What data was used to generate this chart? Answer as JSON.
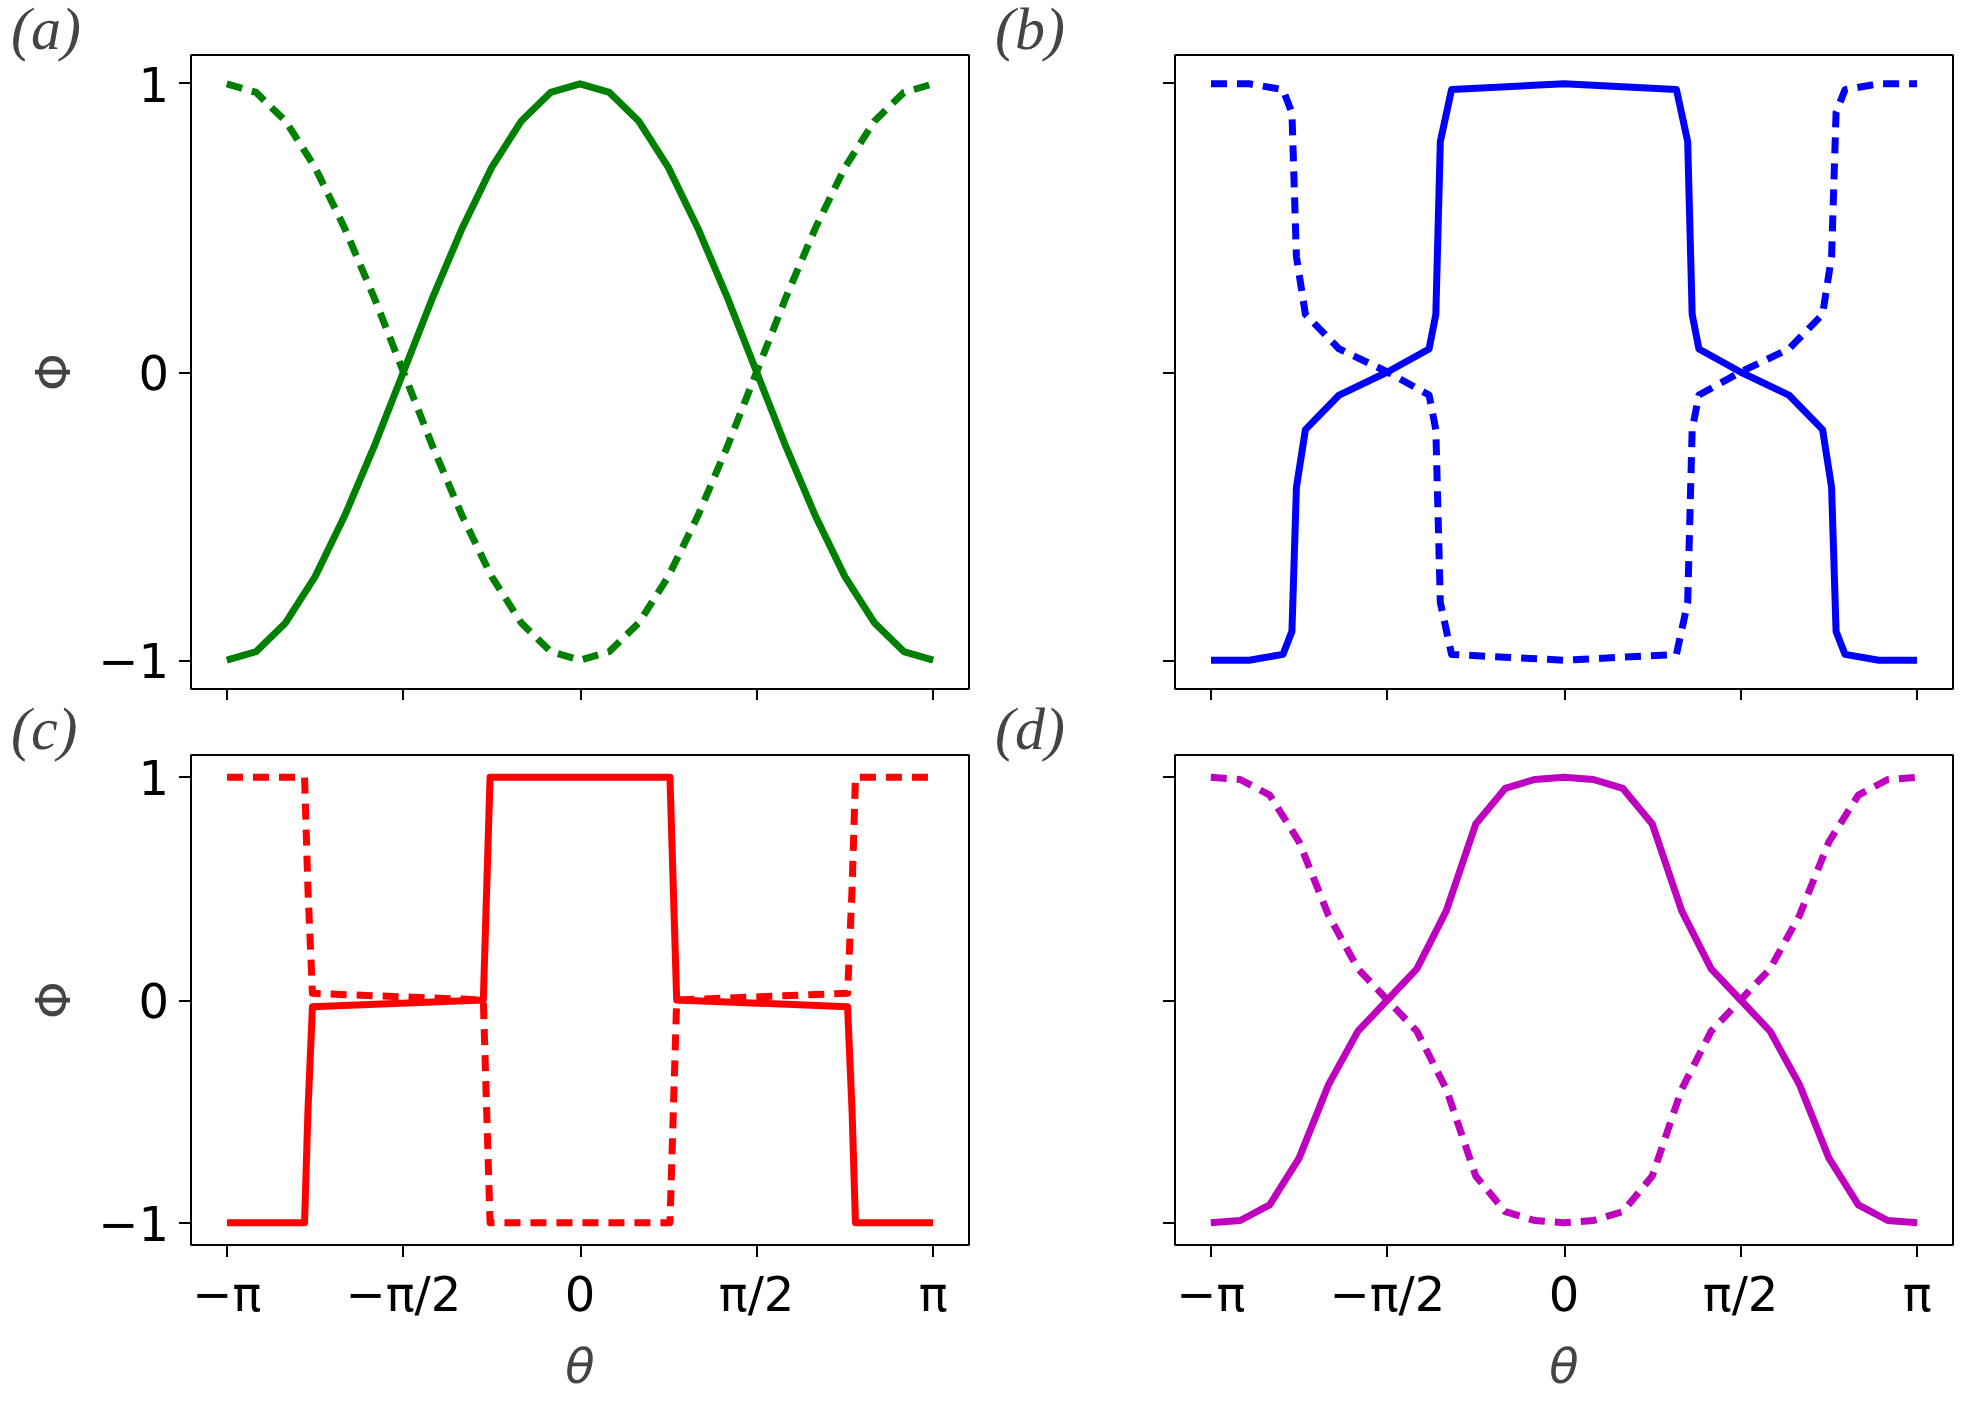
{
  "chart_data": [
    {
      "type": "line",
      "title": "(a)",
      "ylabel": "Φ",
      "tick_labels": "y",
      "xlim": [
        -3.46,
        3.46
      ],
      "ylim": [
        -1.1,
        1.1
      ],
      "grid": false,
      "xticks": [
        {
          "value": -3.1416,
          "label": null
        },
        {
          "value": -1.5708,
          "label": null
        },
        {
          "value": 0,
          "label": null
        },
        {
          "value": 1.5708,
          "label": null
        },
        {
          "value": 3.1416,
          "label": null
        }
      ],
      "yticks": [
        {
          "value": -1,
          "label": "−1"
        },
        0,
        1
      ],
      "x": [
        -3.1416,
        -2.8798,
        -2.618,
        -2.3562,
        -2.0944,
        -1.8326,
        -1.5708,
        -1.309,
        -1.0472,
        -0.7854,
        -0.5236,
        -0.2618,
        0,
        0.2618,
        0.5236,
        0.7854,
        1.0472,
        1.309,
        1.5708,
        1.8326,
        2.0944,
        2.3562,
        2.618,
        2.8798,
        3.1416
      ],
      "series": [
        {
          "color": "#008000",
          "line_style": "solid",
          "values": [
            -1,
            -0.97,
            -0.87,
            -0.71,
            -0.5,
            -0.26,
            0,
            0.26,
            0.5,
            0.71,
            0.87,
            0.97,
            1,
            0.97,
            0.87,
            0.71,
            0.5,
            0.26,
            0,
            -0.26,
            -0.5,
            -0.71,
            -0.87,
            -0.97,
            -1
          ]
        },
        {
          "color": "#008000",
          "line_style": "dashed",
          "values": [
            1,
            0.97,
            0.87,
            0.71,
            0.5,
            0.26,
            0,
            -0.26,
            -0.5,
            -0.71,
            -0.87,
            -0.97,
            -1,
            -0.97,
            -0.87,
            -0.71,
            -0.5,
            -0.26,
            0,
            0.26,
            0.5,
            0.71,
            0.87,
            0.97,
            1
          ]
        }
      ]
    },
    {
      "type": "line",
      "title": "(b)",
      "tick_labels": false,
      "xlim": [
        -3.46,
        3.46
      ],
      "ylim": [
        -1.1,
        1.1
      ],
      "grid": false,
      "xticks": [
        {
          "value": -3.1416,
          "label": null
        },
        {
          "value": -1.5708,
          "label": null
        },
        {
          "value": 0,
          "label": null
        },
        {
          "value": 1.5708,
          "label": null
        },
        {
          "value": 3.1416,
          "label": null
        }
      ],
      "yticks": [
        {
          "value": -1,
          "label": null
        },
        {
          "value": 0,
          "label": null
        },
        {
          "value": 1,
          "label": null
        }
      ],
      "x": [
        -3.14,
        -2.8,
        -2.5,
        -2.42,
        -2.38,
        -2.3,
        -2.0,
        -1.57,
        -1.2,
        -1.14,
        -1.1,
        -1.0,
        0,
        1.0,
        1.1,
        1.14,
        1.2,
        1.57,
        2.0,
        2.3,
        2.38,
        2.42,
        2.5,
        2.8,
        3.14
      ],
      "series": [
        {
          "color": "#0000ff",
          "line_style": "solid",
          "values": [
            -1,
            -1,
            -0.98,
            -0.9,
            -0.4,
            -0.2,
            -0.08,
            0,
            0.08,
            0.2,
            0.8,
            0.98,
            1,
            0.98,
            0.8,
            0.2,
            0.08,
            0,
            -0.08,
            -0.2,
            -0.4,
            -0.9,
            -0.98,
            -1,
            -1
          ]
        },
        {
          "color": "#0000ff",
          "line_style": "dashed",
          "values": [
            1,
            1,
            0.98,
            0.9,
            0.4,
            0.2,
            0.08,
            0,
            -0.08,
            -0.2,
            -0.8,
            -0.98,
            -1,
            -0.98,
            -0.8,
            -0.2,
            -0.08,
            0,
            0.08,
            0.2,
            0.4,
            0.9,
            0.98,
            1,
            1
          ]
        }
      ]
    },
    {
      "type": "line",
      "title": "(c)",
      "ylabel": "Φ",
      "xlabel": "θ",
      "xlim": [
        -3.46,
        3.46
      ],
      "ylim": [
        -1.1,
        1.1
      ],
      "grid": false,
      "xticks": [
        {
          "value": -3.1416,
          "label": "−π"
        },
        {
          "value": -1.5708,
          "label": "−π/2"
        },
        {
          "value": 0,
          "label": "0"
        },
        {
          "value": 1.5708,
          "label": "π/2"
        },
        {
          "value": 3.1416,
          "label": "π"
        }
      ],
      "yticks": [
        {
          "value": -1,
          "label": "−1"
        },
        0,
        1
      ],
      "x": [
        -3.14,
        -2.45,
        -2.42,
        -2.38,
        -0.86,
        -0.83,
        -0.8,
        0.8,
        0.83,
        0.86,
        2.38,
        2.42,
        2.45,
        3.14
      ],
      "series": [
        {
          "color": "#ff0000",
          "line_style": "solid",
          "values": [
            -1,
            -1,
            -0.5,
            -0.03,
            0,
            0.5,
            1,
            1,
            0.5,
            0,
            -0.03,
            -0.5,
            -1,
            -1
          ]
        },
        {
          "color": "#ff0000",
          "line_style": "dashed",
          "values": [
            1,
            1,
            0.5,
            0.03,
            0,
            -0.5,
            -1,
            -1,
            -0.5,
            0,
            0.03,
            0.5,
            1,
            1
          ]
        }
      ]
    },
    {
      "type": "line",
      "title": "(d)",
      "xlabel": "θ",
      "tick_labels": "x",
      "xlim": [
        -3.46,
        3.46
      ],
      "ylim": [
        -1.1,
        1.1
      ],
      "grid": false,
      "xticks": [
        {
          "value": -3.1416,
          "label": "−π"
        },
        {
          "value": -1.5708,
          "label": "−π/2"
        },
        {
          "value": 0,
          "label": "0"
        },
        {
          "value": 1.5708,
          "label": "π/2"
        },
        {
          "value": 3.1416,
          "label": "π"
        }
      ],
      "yticks": [
        {
          "value": -1,
          "label": null
        },
        {
          "value": 0,
          "label": null
        },
        {
          "value": 1,
          "label": null
        }
      ],
      "x": [
        -3.1416,
        -2.8798,
        -2.618,
        -2.3562,
        -2.0944,
        -1.8326,
        -1.5708,
        -1.309,
        -1.0472,
        -0.7854,
        -0.5236,
        -0.2618,
        0,
        0.2618,
        0.5236,
        0.7854,
        1.0472,
        1.309,
        1.5708,
        1.8326,
        2.0944,
        2.3562,
        2.618,
        2.8798,
        3.1416
      ],
      "series": [
        {
          "color": "#bf00bf",
          "line_style": "solid",
          "values": [
            -1,
            -0.99,
            -0.92,
            -0.71,
            -0.38,
            -0.14,
            0,
            0.14,
            0.4,
            0.79,
            0.95,
            0.99,
            1,
            0.99,
            0.95,
            0.79,
            0.4,
            0.14,
            0,
            -0.14,
            -0.38,
            -0.71,
            -0.92,
            -0.99,
            -1
          ]
        },
        {
          "color": "#bf00bf",
          "line_style": "dashed",
          "values": [
            1,
            0.99,
            0.92,
            0.71,
            0.38,
            0.14,
            0,
            -0.14,
            -0.4,
            -0.79,
            -0.95,
            -0.99,
            -1,
            -0.99,
            -0.95,
            -0.79,
            -0.4,
            -0.14,
            0,
            0.14,
            0.38,
            0.71,
            0.92,
            0.99,
            1
          ]
        }
      ]
    }
  ]
}
